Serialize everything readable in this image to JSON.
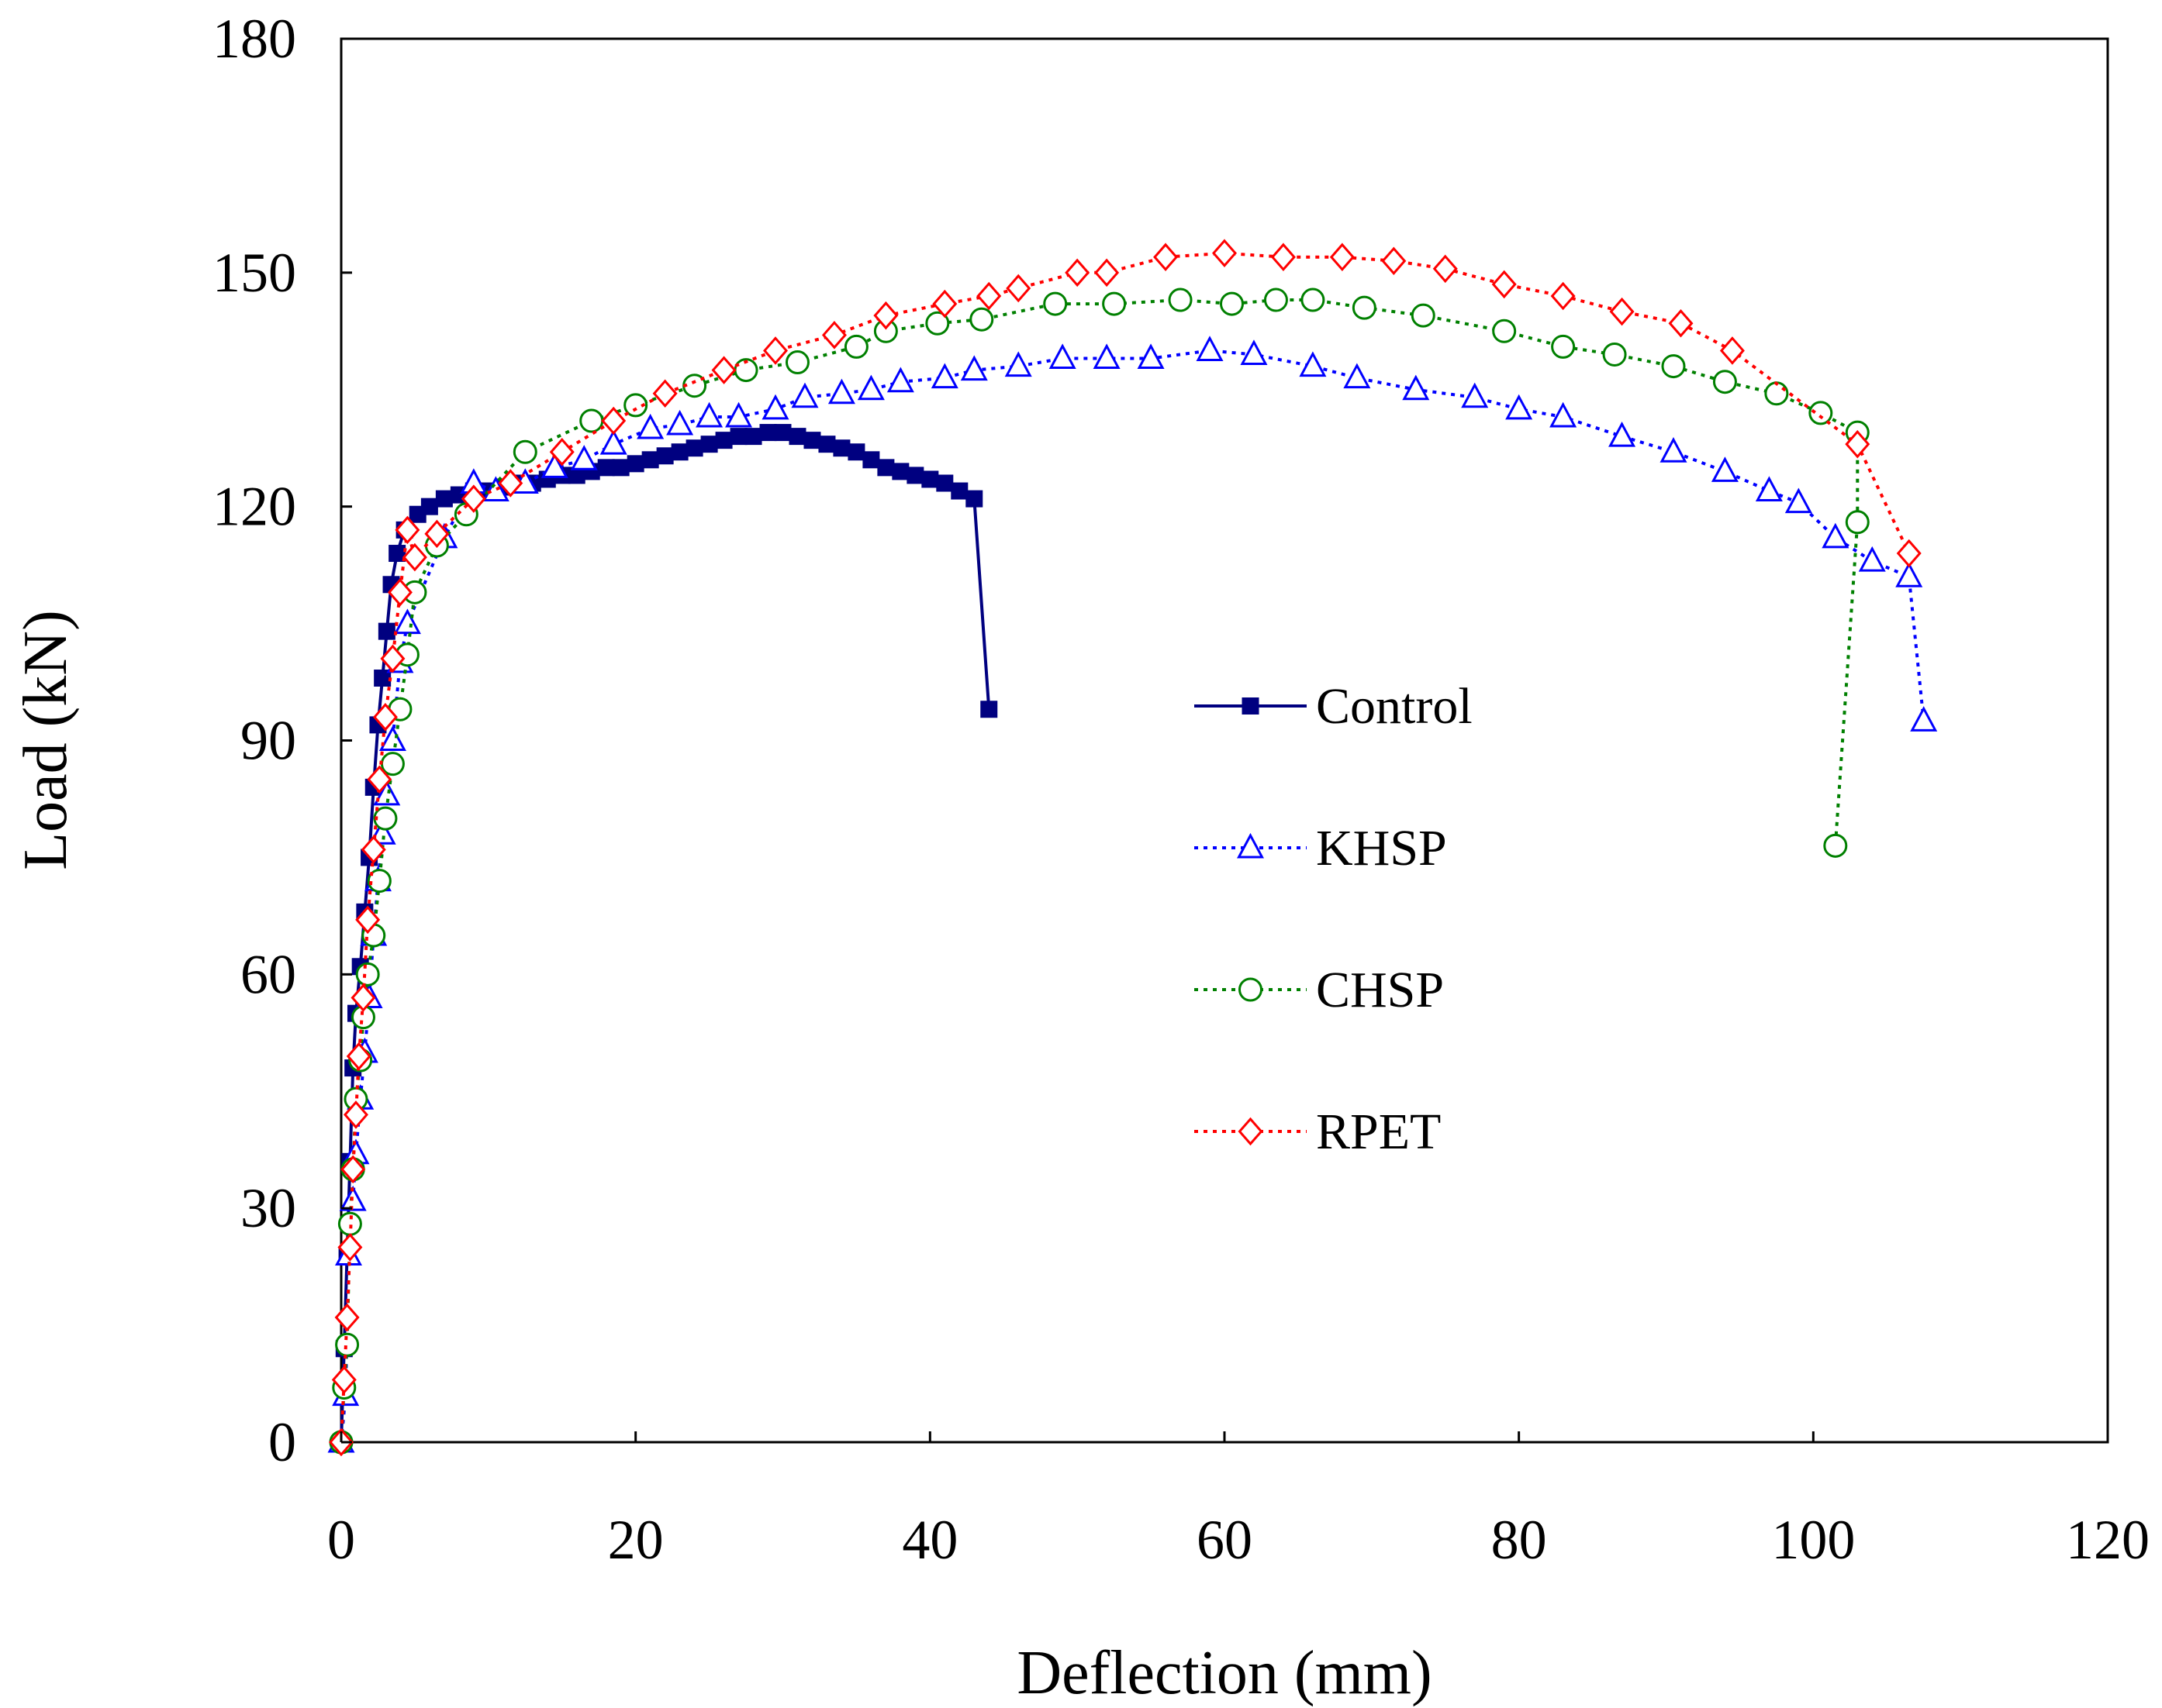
{
  "chart_data": {
    "type": "line",
    "title": "",
    "xlabel": "Deflection (mm)",
    "ylabel": "Load (kN)",
    "xlim": [
      0,
      120
    ],
    "ylim": [
      0,
      180
    ],
    "xticks": [
      0,
      20,
      40,
      60,
      80,
      100,
      120
    ],
    "yticks": [
      0,
      30,
      60,
      90,
      120,
      150,
      180
    ],
    "xtick_labels": [
      "0",
      "20",
      "40",
      "60",
      "80",
      "100",
      "120"
    ],
    "ytick_labels": [
      "0",
      "30",
      "60",
      "90",
      "120",
      "150",
      "180"
    ],
    "grid": false,
    "legend_position": "center-right",
    "series": [
      {
        "name": "Control",
        "color": "#000080",
        "line_style": "solid",
        "marker": "filled-square",
        "x": [
          0,
          0.2,
          0.4,
          0.6,
          0.8,
          1.0,
          1.3,
          1.6,
          1.9,
          2.2,
          2.5,
          2.8,
          3.1,
          3.4,
          3.8,
          4.3,
          5.2,
          6.0,
          7.0,
          8.0,
          9.0,
          10.0,
          11.0,
          12.0,
          13.0,
          14.0,
          15.0,
          16.0,
          17.0,
          18.0,
          19.0,
          20.0,
          21.0,
          22.0,
          23.0,
          24.0,
          25.0,
          26.0,
          27.0,
          28.0,
          29.0,
          30.0,
          31.0,
          32.0,
          33.0,
          34.0,
          35.0,
          36.0,
          37.0,
          38.0,
          39.0,
          40.0,
          41.0,
          42.0,
          43.0,
          44.0
        ],
        "y": [
          0,
          12,
          24,
          36,
          48,
          55,
          61,
          68,
          75,
          84,
          92,
          98,
          104,
          110,
          114,
          117,
          119,
          120,
          121,
          121.5,
          122,
          122,
          122.5,
          123,
          123,
          123.5,
          124,
          124,
          124.5,
          125,
          125,
          125.5,
          126,
          126.5,
          127,
          127.5,
          128,
          128.5,
          129,
          129,
          129.5,
          129.5,
          129,
          128.5,
          128,
          127.5,
          127,
          126,
          125,
          124.5,
          124,
          123.5,
          123,
          122,
          121,
          94
        ]
      },
      {
        "name": "KHSP",
        "color": "#0000ff",
        "line_style": "dotted",
        "marker": "open-triangle",
        "x": [
          0,
          0.3,
          0.5,
          0.8,
          1.0,
          1.3,
          1.6,
          1.9,
          2.2,
          2.5,
          2.8,
          3.1,
          3.5,
          4.0,
          4.5,
          7.0,
          9.0,
          10.5,
          12.5,
          14.5,
          16.5,
          18.5,
          21.0,
          23.0,
          25.0,
          27.0,
          29.5,
          31.5,
          34.0,
          36.0,
          38.0,
          41.0,
          43.0,
          46.0,
          49.0,
          52.0,
          55.0,
          59.0,
          62.0,
          66.0,
          69.0,
          73.0,
          77.0,
          80.0,
          83.0,
          87.0,
          90.5,
          94.0,
          97.0,
          99.0,
          101.5,
          104.0,
          106.5,
          107.5
        ],
        "y": [
          0,
          6,
          24,
          31,
          37,
          44,
          50,
          57,
          65,
          72,
          78,
          83,
          90,
          100,
          105,
          116,
          123,
          122,
          123,
          125,
          126,
          128,
          130,
          130.5,
          131.5,
          131.5,
          132.5,
          134,
          134.5,
          135,
          136,
          136.5,
          137.5,
          138,
          139,
          139,
          139,
          140,
          139.5,
          138,
          136.5,
          135,
          134,
          132.5,
          131.5,
          129,
          127,
          124.5,
          122,
          120.5,
          116,
          113,
          111,
          92.5
        ]
      },
      {
        "name": "CHSP",
        "color": "#008000",
        "line_style": "dotted",
        "marker": "open-circle",
        "x": [
          0,
          0.2,
          0.4,
          0.6,
          0.8,
          1.0,
          1.3,
          1.5,
          1.8,
          2.2,
          2.6,
          3.0,
          3.5,
          4.0,
          4.5,
          5.0,
          6.5,
          8.5,
          12.5,
          17.0,
          20.0,
          24.0,
          27.5,
          31.0,
          35.0,
          37.0,
          40.5,
          43.5,
          48.5,
          52.5,
          57.0,
          60.5,
          63.5,
          66.0,
          69.5,
          73.5,
          79.0,
          83.0,
          86.5,
          90.5,
          94.0,
          97.5,
          100.5,
          103.0,
          103.0,
          101.5
        ],
        "y": [
          0,
          7,
          12.5,
          28,
          35,
          44,
          49,
          54.5,
          60,
          65,
          72,
          80,
          87,
          94,
          101,
          109,
          115,
          119,
          127,
          131,
          133,
          135.5,
          137.5,
          138.5,
          140.5,
          142.5,
          143.5,
          144,
          146,
          146,
          146.5,
          146,
          146.5,
          146.5,
          145.5,
          144.5,
          142.5,
          140.5,
          139.5,
          138,
          136,
          134.5,
          132,
          129.5,
          118,
          76.5
        ]
      },
      {
        "name": "RPET",
        "color": "#ff0000",
        "line_style": "dotted",
        "marker": "open-diamond",
        "x": [
          0,
          0.2,
          0.4,
          0.6,
          0.8,
          1.0,
          1.2,
          1.5,
          1.8,
          2.2,
          2.6,
          3.0,
          3.5,
          4.0,
          4.5,
          5.0,
          6.5,
          9.0,
          11.5,
          15.0,
          18.5,
          22.0,
          26.0,
          29.5,
          33.5,
          37.0,
          41.0,
          44.0,
          46.0,
          50.0,
          52.0,
          56.0,
          60.0,
          64.0,
          68.0,
          71.5,
          75.0,
          79.0,
          83.0,
          87.0,
          91.0,
          94.5,
          103.0,
          106.5
        ],
        "y": [
          0,
          8,
          16,
          25,
          35,
          42,
          49.5,
          57,
          67,
          76,
          85,
          93,
          100.5,
          109,
          117,
          113.5,
          116.5,
          121,
          123,
          127,
          131,
          134.5,
          137.5,
          140,
          142,
          144.5,
          146,
          147,
          148,
          150,
          150,
          152,
          152.5,
          152,
          152,
          151.5,
          150.5,
          148.5,
          147,
          145,
          143.5,
          140,
          128,
          114
        ]
      }
    ]
  }
}
